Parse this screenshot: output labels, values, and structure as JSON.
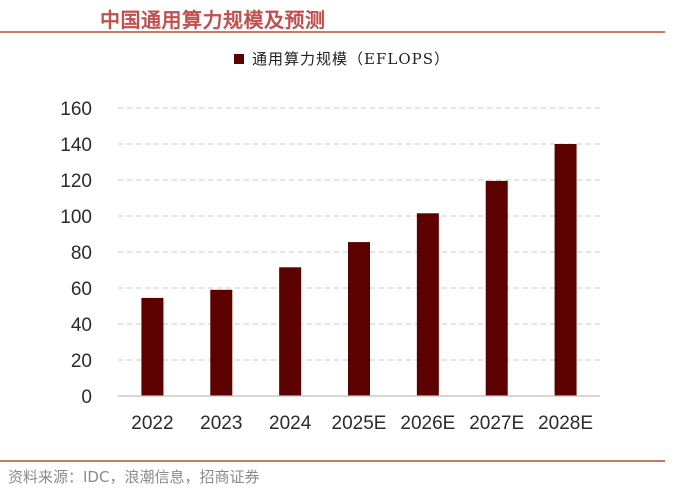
{
  "header": {
    "title": "中国通用算力规模及预测"
  },
  "footer": {
    "source": "资料来源：IDC，浪潮信息，招商证券"
  },
  "chart_data": {
    "type": "bar",
    "title": "中国通用算力规模及预测",
    "xlabel": "",
    "ylabel": "",
    "categories": [
      "2022",
      "2023",
      "2024",
      "2025E",
      "2026E",
      "2027E",
      "2028E"
    ],
    "series": [
      {
        "name": "通用算力规模（EFLOPS）",
        "values": [
          54.5,
          59,
          71.5,
          85.5,
          101.5,
          119.5,
          140
        ],
        "color": "#5c0000"
      }
    ],
    "ylim": [
      0,
      160
    ],
    "yticks": [
      "0",
      "20",
      "40",
      "60",
      "80",
      "100",
      "120",
      "140",
      "160"
    ],
    "grid": true,
    "legend": "top-center"
  }
}
